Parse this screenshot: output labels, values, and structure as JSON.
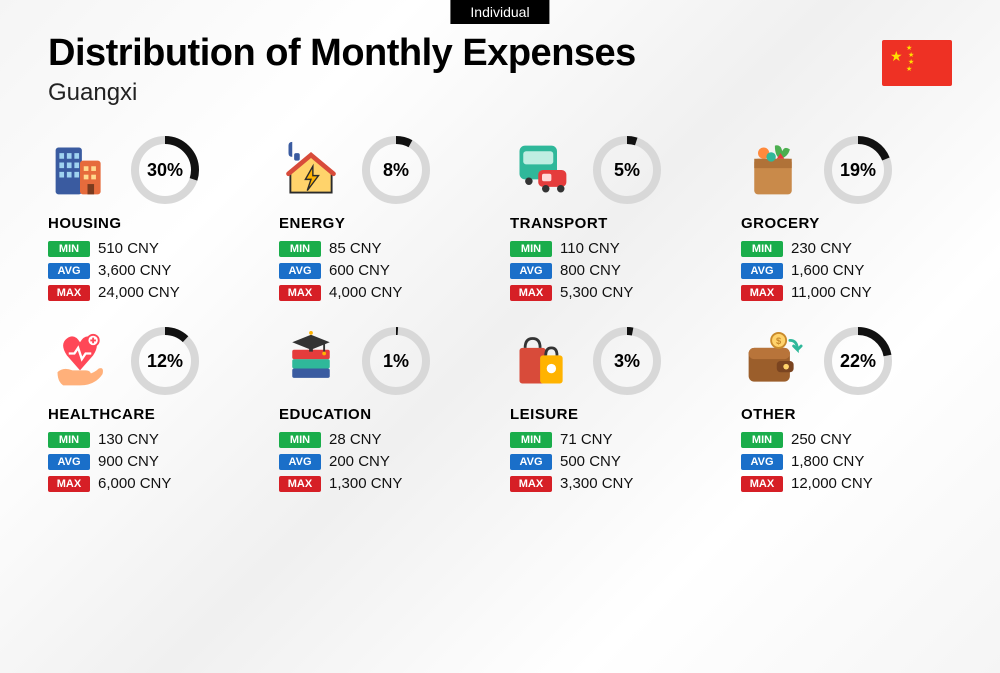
{
  "top_tag": "Individual",
  "title": "Distribution of Monthly Expenses",
  "subtitle": "Guangxi",
  "currency_suffix": "CNY",
  "badges": {
    "min": "MIN",
    "avg": "AVG",
    "max": "MAX"
  },
  "badge_colors": {
    "min": "#1aad4b",
    "avg": "#1a6fc9",
    "max": "#d61f26"
  },
  "donut": {
    "track_color": "#d8d8d8",
    "fill_color": "#111111",
    "stroke_width": 8,
    "radius": 30
  },
  "flag": {
    "bg": "#ee3124",
    "star_color": "#ffde00"
  },
  "categories": [
    {
      "key": "housing",
      "label": "HOUSING",
      "percent": 30,
      "min": "510",
      "avg": "3,600",
      "max": "24,000",
      "icon": "buildings"
    },
    {
      "key": "energy",
      "label": "ENERGY",
      "percent": 8,
      "min": "85",
      "avg": "600",
      "max": "4,000",
      "icon": "house-bolt"
    },
    {
      "key": "transport",
      "label": "TRANSPORT",
      "percent": 5,
      "min": "110",
      "avg": "800",
      "max": "5,300",
      "icon": "bus-car"
    },
    {
      "key": "grocery",
      "label": "GROCERY",
      "percent": 19,
      "min": "230",
      "avg": "1,600",
      "max": "11,000",
      "icon": "grocery-bag"
    },
    {
      "key": "healthcare",
      "label": "HEALTHCARE",
      "percent": 12,
      "min": "130",
      "avg": "900",
      "max": "6,000",
      "icon": "heart-hand"
    },
    {
      "key": "education",
      "label": "EDUCATION",
      "percent": 1,
      "min": "28",
      "avg": "200",
      "max": "1,300",
      "icon": "grad-books"
    },
    {
      "key": "leisure",
      "label": "LEISURE",
      "percent": 3,
      "min": "71",
      "avg": "500",
      "max": "3,300",
      "icon": "shopping-bags"
    },
    {
      "key": "other",
      "label": "OTHER",
      "percent": 22,
      "min": "250",
      "avg": "1,800",
      "max": "12,000",
      "icon": "wallet"
    }
  ]
}
